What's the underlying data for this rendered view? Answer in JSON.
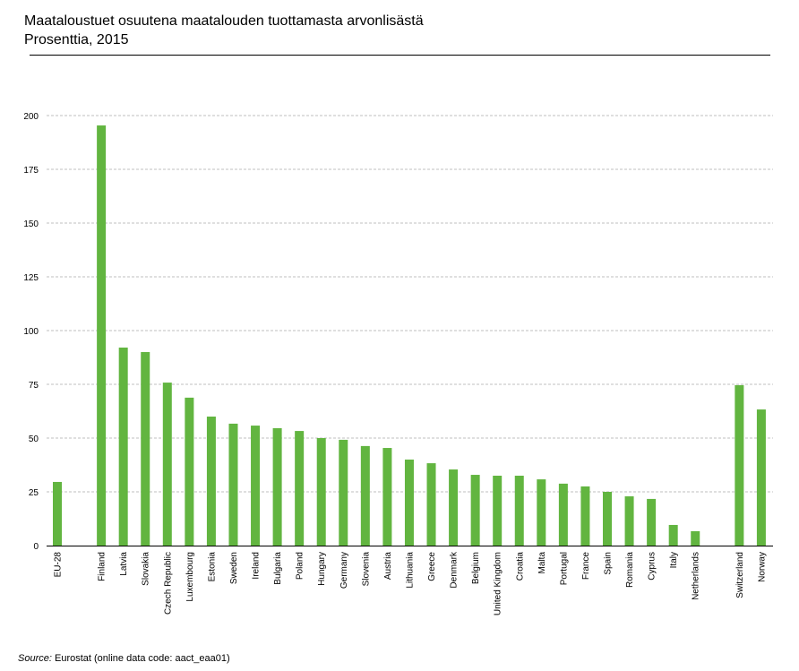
{
  "header": {
    "title": "Maataloustuet osuutena maatalouden tuottamasta arvonlisästä",
    "subtitle": "Prosenttia, 2015"
  },
  "source": {
    "label": "Source:",
    "text": "Eurostat (online data code: aact_eaa01)"
  },
  "colors": {
    "bar": "#62b540",
    "grid": "#bfbfbf"
  },
  "chart_data": {
    "type": "bar",
    "title": "Maataloustuet osuutena maatalouden tuottamasta arvonlisästä",
    "subtitle": "Prosenttia, 2015",
    "xlabel": "",
    "ylabel": "",
    "ylim": [
      0,
      200
    ],
    "yticks": [
      "0",
      "25",
      "50",
      "75",
      "100",
      "125",
      "150",
      "175",
      "200"
    ],
    "grid": true,
    "categories": [
      "EU-28",
      "",
      "Finland",
      "Latvia",
      "Slovakia",
      "Czech Republic",
      "Luxembourg",
      "Estonia",
      "Sweden",
      "Ireland",
      "Bulgaria",
      "Poland",
      "Hungary",
      "Germany",
      "Slovenia",
      "Austria",
      "Lithuania",
      "Greece",
      "Denmark",
      "Belgium",
      "United Kingdom",
      "Croatia",
      "Malta",
      "Portugal",
      "France",
      "Spain",
      "Romania",
      "Cyprus",
      "Italy",
      "Netherlands",
      "",
      "Switzerland",
      "Norway"
    ],
    "values": [
      29.6,
      null,
      195.4,
      92.1,
      90.0,
      75.8,
      68.8,
      60.0,
      56.7,
      55.8,
      54.6,
      53.3,
      50.0,
      49.2,
      46.3,
      45.4,
      40.0,
      38.3,
      35.4,
      32.9,
      32.5,
      32.5,
      30.8,
      28.8,
      27.5,
      25.0,
      22.9,
      21.7,
      9.6,
      6.7,
      null,
      74.6,
      63.3
    ]
  }
}
